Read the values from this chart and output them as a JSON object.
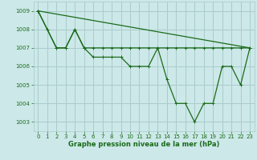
{
  "bg_color": "#cce8e8",
  "grid_color": "#aacccc",
  "line_color": "#1a6b1a",
  "xlim": [
    -0.5,
    23.5
  ],
  "ylim": [
    1002.5,
    1009.5
  ],
  "yticks": [
    1003,
    1004,
    1005,
    1006,
    1007,
    1008,
    1009
  ],
  "xticks": [
    0,
    1,
    2,
    3,
    4,
    5,
    6,
    7,
    8,
    9,
    10,
    11,
    12,
    13,
    14,
    15,
    16,
    17,
    18,
    19,
    20,
    21,
    22,
    23
  ],
  "xlabel": "Graphe pression niveau de la mer (hPa)",
  "series1_x": [
    0,
    23
  ],
  "series1_y": [
    1009.0,
    1007.0
  ],
  "series2_x": [
    0,
    1,
    2,
    3,
    4,
    5,
    6,
    7,
    8,
    9,
    10,
    11,
    12,
    13,
    14,
    15,
    16,
    17,
    18,
    19,
    20,
    21,
    22,
    23
  ],
  "series2_y": [
    1009.0,
    1008.0,
    1007.0,
    1007.0,
    1008.0,
    1007.0,
    1007.0,
    1007.0,
    1007.0,
    1007.0,
    1007.0,
    1007.0,
    1007.0,
    1007.0,
    1007.0,
    1007.0,
    1007.0,
    1007.0,
    1007.0,
    1007.0,
    1007.0,
    1007.0,
    1007.0,
    1007.0
  ],
  "series3_x": [
    0,
    1,
    2,
    3,
    4,
    5,
    6,
    7,
    8,
    9,
    10,
    11,
    12,
    13,
    14,
    15,
    16,
    17,
    18,
    19,
    20,
    21,
    22,
    23
  ],
  "series3_y": [
    1009.0,
    1008.0,
    1007.0,
    1007.0,
    1008.0,
    1007.0,
    1006.5,
    1006.5,
    1006.5,
    1006.5,
    1006.0,
    1006.0,
    1006.0,
    1007.0,
    1005.3,
    1004.0,
    1004.0,
    1003.0,
    1004.0,
    1004.0,
    1006.0,
    1006.0,
    1005.0,
    1007.0
  ],
  "tick_fontsize": 5,
  "xlabel_fontsize": 6,
  "lw": 0.9
}
